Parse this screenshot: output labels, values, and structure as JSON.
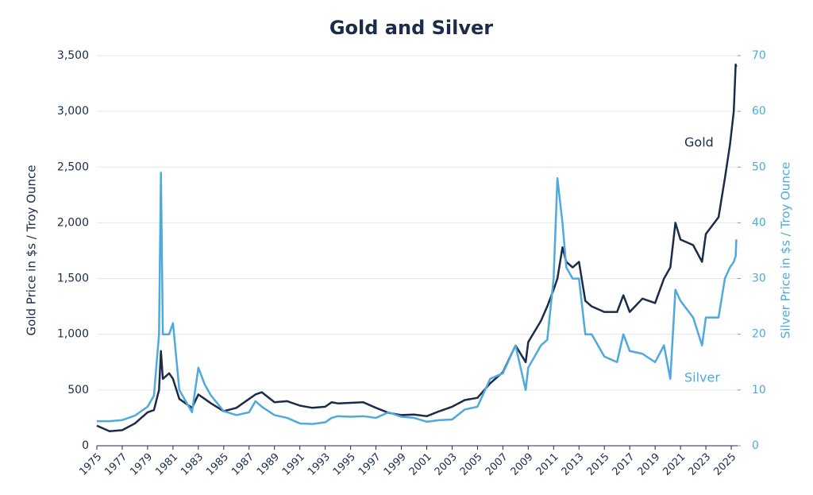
{
  "chart_data": {
    "type": "line",
    "title": "Gold and Silver",
    "y_label": "Gold Price in $s / Troy Ounce",
    "y2_label": "Silver Price in $s / Troy Ounce",
    "x": [
      1975,
      1976,
      1977,
      1978,
      1979,
      1979.5,
      1979.9,
      1980.05,
      1980.2,
      1980.7,
      1981,
      1981.5,
      1982,
      1982.5,
      1983,
      1983.5,
      1984,
      1985,
      1986,
      1987,
      1987.5,
      1988,
      1989,
      1990,
      1991,
      1992,
      1993,
      1993.5,
      1994,
      1995,
      1996,
      1997,
      1998,
      1999,
      2000,
      2001,
      2002,
      2003,
      2004,
      2005,
      2006,
      2007,
      2008,
      2008.8,
      2009,
      2010,
      2010.5,
      2011,
      2011.3,
      2011.7,
      2012,
      2012.5,
      2013,
      2013.5,
      2014,
      2015,
      2016,
      2016.5,
      2017,
      2018,
      2019,
      2019.7,
      2020.2,
      2020.6,
      2021,
      2022,
      2022.7,
      2023,
      2024,
      2024.5,
      2024.9,
      2025.2,
      2025.35,
      2025.4
    ],
    "series": [
      {
        "name": "Gold",
        "color": "#1c2b4a",
        "axis": "y",
        "values": [
          180,
          130,
          140,
          200,
          300,
          320,
          500,
          850,
          600,
          650,
          600,
          420,
          380,
          340,
          460,
          420,
          380,
          310,
          340,
          420,
          460,
          480,
          390,
          400,
          360,
          340,
          350,
          390,
          380,
          385,
          390,
          340,
          295,
          275,
          280,
          265,
          310,
          350,
          410,
          430,
          560,
          660,
          900,
          750,
          930,
          1120,
          1250,
          1400,
          1500,
          1780,
          1650,
          1600,
          1650,
          1300,
          1250,
          1200,
          1200,
          1350,
          1200,
          1320,
          1280,
          1500,
          1600,
          2000,
          1850,
          1800,
          1650,
          1900,
          2050,
          2400,
          2700,
          3000,
          3420,
          3400
        ]
      },
      {
        "name": "Silver",
        "color": "#4ea9dc",
        "axis": "y2",
        "values": [
          4.4,
          4.4,
          4.6,
          5.4,
          7,
          9,
          20,
          49,
          20,
          20,
          22,
          10,
          8,
          6,
          14,
          11,
          9,
          6.2,
          5.5,
          6,
          8,
          7,
          5.5,
          5,
          4,
          3.9,
          4.2,
          5,
          5.3,
          5.2,
          5.3,
          5,
          6,
          5.2,
          5,
          4.3,
          4.6,
          4.7,
          6.5,
          7,
          12,
          13,
          18,
          10,
          14,
          18,
          19,
          30,
          48,
          40,
          32,
          30,
          30,
          20,
          20,
          16,
          15,
          20,
          17,
          16.5,
          15,
          18,
          12,
          28,
          26,
          23,
          18,
          23,
          23,
          30,
          32,
          33,
          34,
          37
        ]
      }
    ],
    "xlim": [
      1975,
      2025.5
    ],
    "xticks": [
      1975,
      1977,
      1979,
      1981,
      1983,
      1985,
      1987,
      1989,
      1991,
      1993,
      1995,
      1997,
      1999,
      2001,
      2003,
      2005,
      2007,
      2009,
      2011,
      2013,
      2015,
      2017,
      2019,
      2021,
      2023,
      2025
    ],
    "ylim": [
      0,
      3500
    ],
    "yticks": [
      0,
      500,
      {
        "value": 1000,
        "label": "1,000"
      },
      {
        "value": 1500,
        "label": "1,500"
      },
      {
        "value": 2000,
        "label": "2,000"
      },
      {
        "value": 2500,
        "label": "2,500"
      },
      {
        "value": 3000,
        "label": "3,000"
      },
      {
        "value": 3500,
        "label": "3,500"
      }
    ],
    "y2lim": [
      0,
      70
    ],
    "y2ticks": [
      0,
      10,
      20,
      30,
      40,
      50,
      60,
      70
    ],
    "grid": true
  }
}
